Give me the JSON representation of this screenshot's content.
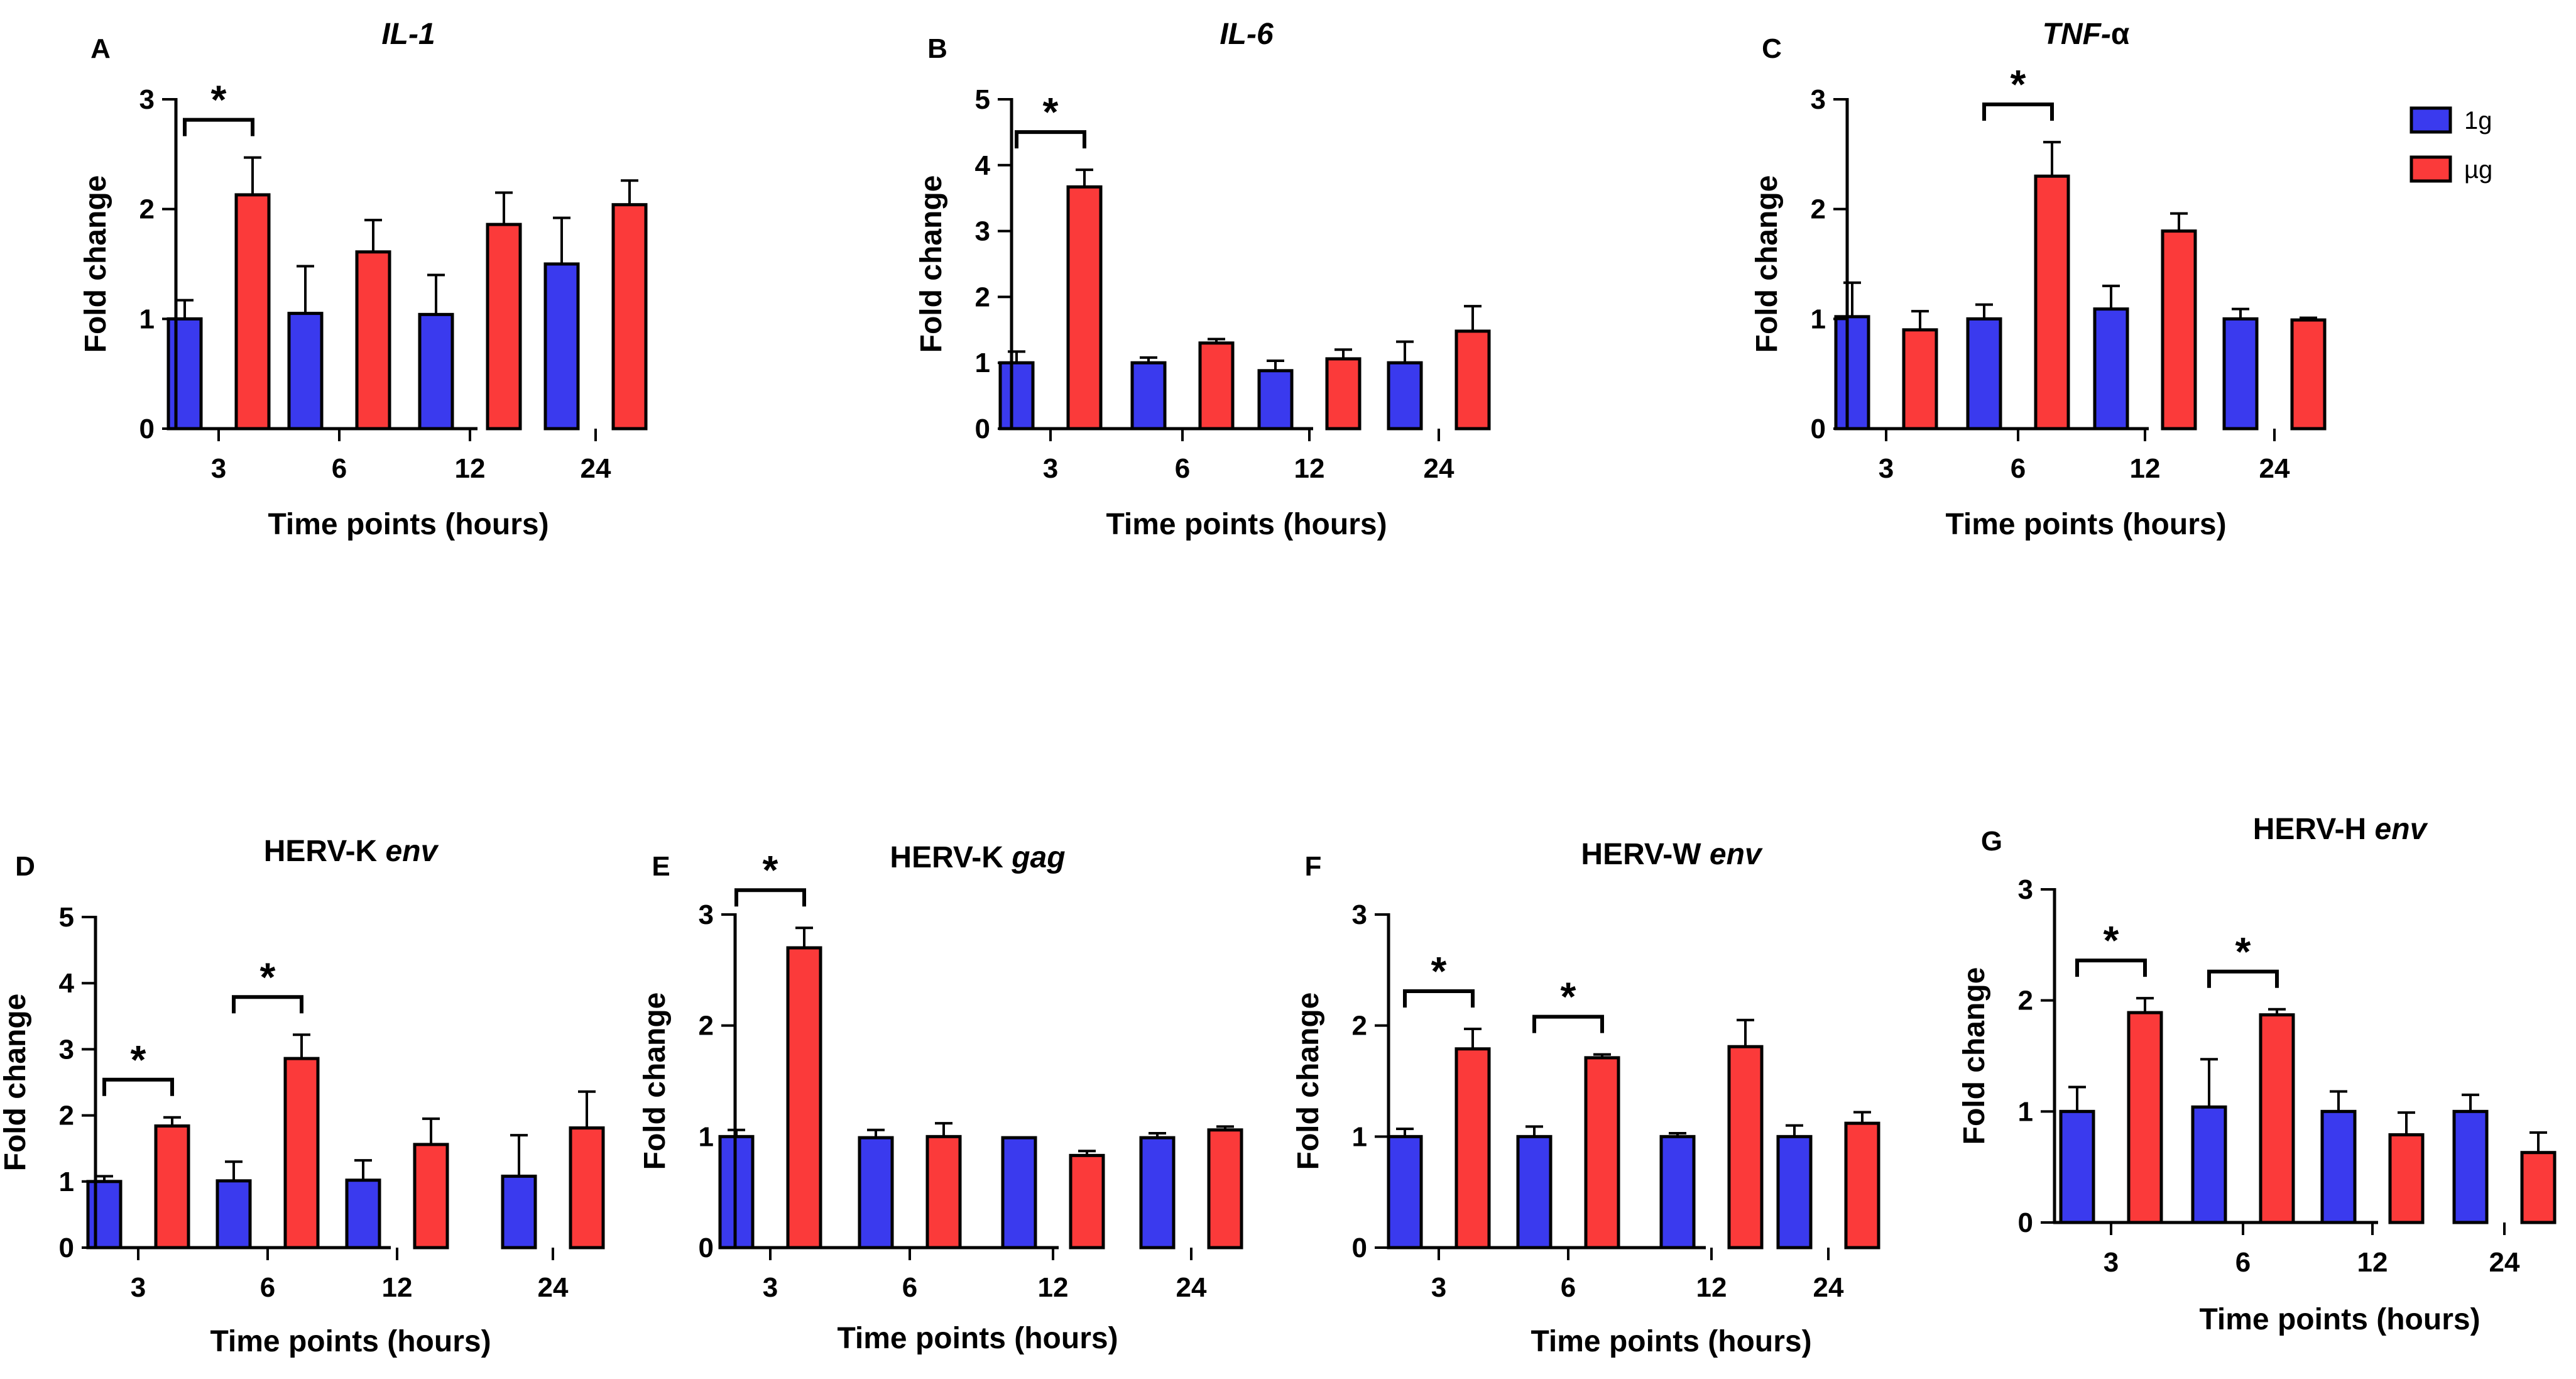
{
  "figure": {
    "legend": {
      "placement": "right of panel C",
      "entries": [
        {
          "name": "1g",
          "color": "#3a3aee"
        },
        {
          "name": "µg",
          "color": "#fb3a3a"
        }
      ]
    },
    "colors": {
      "bar_1g": "#3a3aee",
      "bar_ug": "#fb3a3a",
      "axis": "#000000"
    }
  },
  "chart_data": [
    {
      "type": "bar",
      "letter": "A",
      "title": [
        {
          "text": "IL-1",
          "italic": true
        }
      ],
      "categories": [
        "3",
        "6",
        "12",
        "24"
      ],
      "xlabel": "Time points (hours)",
      "ylabel": "Fold change",
      "ylim": [
        0,
        3
      ],
      "yticks": [
        0,
        1,
        2,
        3
      ],
      "series": [
        {
          "name": "1g",
          "values": [
            1.0,
            1.05,
            1.04,
            1.5
          ],
          "errors": [
            0.17,
            0.43,
            0.36,
            0.42
          ]
        },
        {
          "name": "µg",
          "values": [
            2.13,
            1.61,
            1.86,
            2.04
          ],
          "errors": [
            0.34,
            0.29,
            0.29,
            0.22
          ]
        }
      ],
      "significance": [
        {
          "category": "3",
          "label": "*"
        }
      ]
    },
    {
      "type": "bar",
      "letter": "B",
      "title": [
        {
          "text": "IL-6",
          "italic": true
        }
      ],
      "categories": [
        "3",
        "6",
        "12",
        "24"
      ],
      "xlabel": "Time points (hours)",
      "ylabel": "Fold change",
      "ylim": [
        0,
        5
      ],
      "yticks": [
        0,
        1,
        2,
        3,
        4,
        5
      ],
      "series": [
        {
          "name": "1g",
          "values": [
            1.0,
            1.0,
            0.88,
            1.0
          ],
          "errors": [
            0.17,
            0.08,
            0.15,
            0.32
          ]
        },
        {
          "name": "µg",
          "values": [
            3.67,
            1.3,
            1.06,
            1.48
          ],
          "errors": [
            0.26,
            0.06,
            0.14,
            0.38
          ]
        }
      ],
      "significance": [
        {
          "category": "3",
          "label": "*"
        }
      ]
    },
    {
      "type": "bar",
      "letter": "C",
      "title": [
        {
          "text": "TNF-",
          "italic": true
        },
        {
          "text": "α",
          "italic": false
        }
      ],
      "categories": [
        "3",
        "6",
        "12",
        "24"
      ],
      "xlabel": "Time points (hours)",
      "ylabel": "Fold change",
      "ylim": [
        0,
        3
      ],
      "yticks": [
        0,
        1,
        2,
        3
      ],
      "series": [
        {
          "name": "1g",
          "values": [
            1.02,
            1.0,
            1.09,
            1.0
          ],
          "errors": [
            0.31,
            0.13,
            0.21,
            0.09
          ]
        },
        {
          "name": "µg",
          "values": [
            0.9,
            2.3,
            1.8,
            0.99
          ],
          "errors": [
            0.17,
            0.31,
            0.16,
            0.02
          ]
        }
      ],
      "significance": [
        {
          "category": "6",
          "label": "*"
        }
      ]
    },
    {
      "type": "bar",
      "letter": "D",
      "title": [
        {
          "text": "HERV-K ",
          "italic": false
        },
        {
          "text": "env",
          "italic": true
        }
      ],
      "categories": [
        "3",
        "6",
        "12",
        "24"
      ],
      "xlabel": "Time points (hours)",
      "ylabel": "Fold change",
      "ylim": [
        0,
        5
      ],
      "yticks": [
        0,
        1,
        2,
        3,
        4,
        5
      ],
      "series": [
        {
          "name": "1g",
          "values": [
            1.0,
            1.01,
            1.02,
            1.08
          ],
          "errors": [
            0.08,
            0.29,
            0.3,
            0.62
          ]
        },
        {
          "name": "µg",
          "values": [
            1.84,
            2.86,
            1.56,
            1.81
          ],
          "errors": [
            0.13,
            0.36,
            0.39,
            0.55
          ]
        }
      ],
      "significance": [
        {
          "category": "3",
          "label": "*"
        },
        {
          "category": "6",
          "label": "*"
        }
      ]
    },
    {
      "type": "bar",
      "letter": "E",
      "title": [
        {
          "text": "HERV-K ",
          "italic": false
        },
        {
          "text": "gag",
          "italic": true
        }
      ],
      "categories": [
        "3",
        "6",
        "12",
        "24"
      ],
      "xlabel": "Time points (hours)",
      "ylabel": "Fold change",
      "ylim": [
        0,
        3
      ],
      "yticks": [
        0,
        1,
        2,
        3
      ],
      "series": [
        {
          "name": "1g",
          "values": [
            1.0,
            0.99,
            0.99,
            0.99
          ],
          "errors": [
            0.06,
            0.07,
            0.0,
            0.04
          ]
        },
        {
          "name": "µg",
          "values": [
            2.7,
            1.0,
            0.83,
            1.06
          ],
          "errors": [
            0.18,
            0.12,
            0.04,
            0.03
          ]
        }
      ],
      "significance": [
        {
          "category": "3",
          "label": "*"
        }
      ]
    },
    {
      "type": "bar",
      "letter": "F",
      "title": [
        {
          "text": "HERV-W ",
          "italic": false
        },
        {
          "text": "env",
          "italic": true
        }
      ],
      "categories": [
        "3",
        "6",
        "12",
        "24"
      ],
      "xlabel": "Time points (hours)",
      "ylabel": "Fold change",
      "ylim": [
        0,
        3
      ],
      "yticks": [
        0,
        1,
        2,
        3
      ],
      "series": [
        {
          "name": "1g",
          "values": [
            1.0,
            1.0,
            1.0,
            1.0
          ],
          "errors": [
            0.07,
            0.09,
            0.03,
            0.1
          ]
        },
        {
          "name": "µg",
          "values": [
            1.79,
            1.71,
            1.81,
            1.12
          ],
          "errors": [
            0.18,
            0.03,
            0.24,
            0.1
          ]
        }
      ],
      "significance": [
        {
          "category": "3",
          "label": "*"
        },
        {
          "category": "6",
          "label": "*"
        }
      ]
    },
    {
      "type": "bar",
      "letter": "G",
      "title": [
        {
          "text": "HERV-H ",
          "italic": false
        },
        {
          "text": "env",
          "italic": true
        }
      ],
      "categories": [
        "3",
        "6",
        "12",
        "24"
      ],
      "xlabel": "Time points (hours)",
      "ylabel": "Fold change",
      "ylim": [
        0,
        3
      ],
      "yticks": [
        0,
        1,
        2,
        3
      ],
      "series": [
        {
          "name": "1g",
          "values": [
            1.0,
            1.04,
            1.0,
            1.0
          ],
          "errors": [
            0.22,
            0.43,
            0.18,
            0.15
          ]
        },
        {
          "name": "µg",
          "values": [
            1.89,
            1.87,
            0.79,
            0.63
          ],
          "errors": [
            0.13,
            0.05,
            0.2,
            0.18
          ]
        }
      ],
      "significance": [
        {
          "category": "3",
          "label": "*"
        },
        {
          "category": "6",
          "label": "*"
        }
      ]
    }
  ]
}
